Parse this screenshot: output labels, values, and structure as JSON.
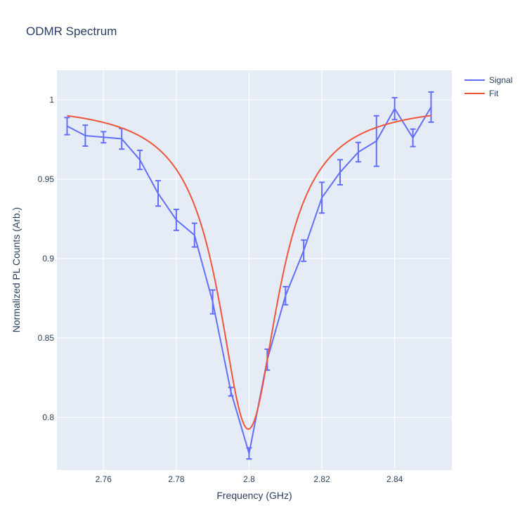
{
  "chart_data": {
    "type": "line",
    "title": "ODMR Spectrum",
    "xlabel": "Frequency (GHz)",
    "ylabel": "Normalized PL Counts (Arb.)",
    "xlim": [
      2.7472,
      2.8557
    ],
    "ylim": [
      0.7667,
      1.0187
    ],
    "xticks": [
      "2.76",
      "2.78",
      "2.8",
      "2.82",
      "2.84"
    ],
    "xtick_values": [
      2.76,
      2.78,
      2.8,
      2.82,
      2.84
    ],
    "yticks": [
      "0.8",
      "0.85",
      "0.9",
      "0.95",
      "1"
    ],
    "ytick_values": [
      0.8,
      0.85,
      0.9,
      0.95,
      1.0
    ],
    "grid": true,
    "legend_position": "top-right",
    "plot_bg": "#e5ecf6",
    "series": [
      {
        "name": "Signal",
        "color": "#636efa",
        "x": [
          2.75,
          2.755,
          2.76,
          2.765,
          2.77,
          2.775,
          2.78,
          2.785,
          2.79,
          2.795,
          2.8,
          2.805,
          2.81,
          2.815,
          2.82,
          2.825,
          2.83,
          2.835,
          2.84,
          2.845,
          2.85
        ],
        "y": [
          0.9835,
          0.9775,
          0.9765,
          0.9755,
          0.9622,
          0.9411,
          0.9244,
          0.9148,
          0.8727,
          0.8161,
          0.7772,
          0.8363,
          0.8766,
          0.905,
          0.9384,
          0.9544,
          0.9671,
          0.9741,
          0.9945,
          0.9761,
          0.9955
        ],
        "error": [
          0.0054,
          0.0066,
          0.0035,
          0.0065,
          0.006,
          0.008,
          0.0066,
          0.0075,
          0.0075,
          0.0027,
          0.0035,
          0.0066,
          0.0057,
          0.0067,
          0.0097,
          0.0079,
          0.0061,
          0.0159,
          0.0069,
          0.0055,
          0.0095
        ]
      },
      {
        "name": "Fit",
        "color": "#ef553b",
        "model": "lorentzian",
        "baseline": 0.998,
        "depth": 0.2055,
        "center": 2.7998,
        "hwhm": 0.01
      }
    ]
  }
}
